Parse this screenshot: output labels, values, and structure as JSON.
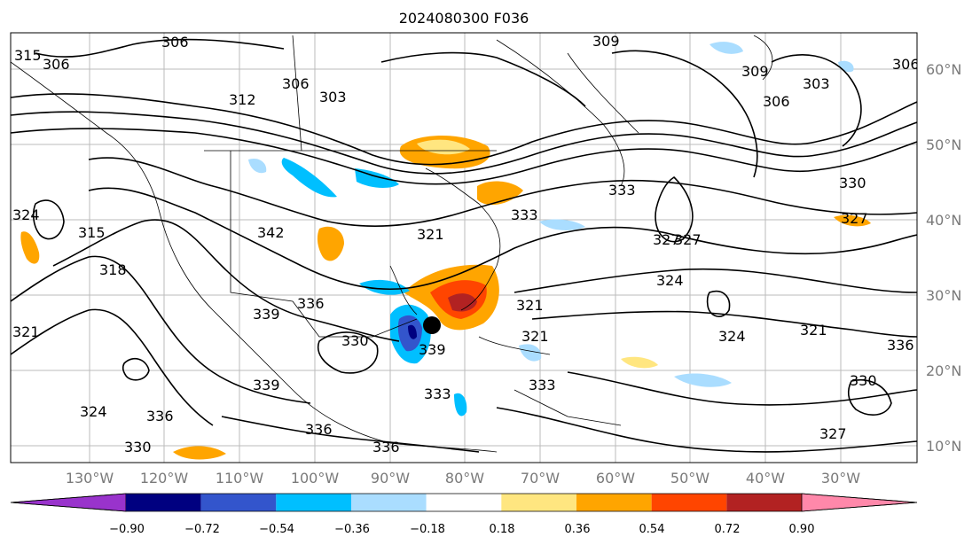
{
  "title": "2024080300 F036",
  "map": {
    "lon_labels": [
      "130°W",
      "120°W",
      "110°W",
      "100°W",
      "90°W",
      "80°W",
      "70°W",
      "60°W",
      "50°W",
      "40°W",
      "30°W"
    ],
    "lat_labels": [
      "60°N",
      "50°N",
      "40°N",
      "30°N",
      "20°N",
      "10°N"
    ],
    "contour_labels": [
      "306",
      "303",
      "306",
      "309",
      "309",
      "303",
      "306",
      "315",
      "306",
      "312",
      "306",
      "333",
      "333",
      "330",
      "324",
      "327",
      "315",
      "318",
      "342",
      "321",
      "324",
      "327",
      "321",
      "339",
      "336",
      "330",
      "339",
      "336",
      "321",
      "339",
      "336",
      "336",
      "327",
      "321",
      "324",
      "324",
      "333",
      "330",
      "327",
      "321",
      "336",
      "333",
      "330"
    ],
    "storm_marker": "storm-center-marker"
  },
  "colorbar": {
    "tick_labels": [
      "−0.90",
      "−0.72",
      "−0.54",
      "−0.36",
      "−0.18",
      "0.18",
      "0.36",
      "0.54",
      "0.72",
      "0.90"
    ],
    "colors": [
      "#9933cc",
      "#000080",
      "#3355cc",
      "#00bfff",
      "#aaddff",
      "#ffffff",
      "#ffe680",
      "#ffa500",
      "#ff4500",
      "#b22222",
      "#ff88aa"
    ]
  }
}
